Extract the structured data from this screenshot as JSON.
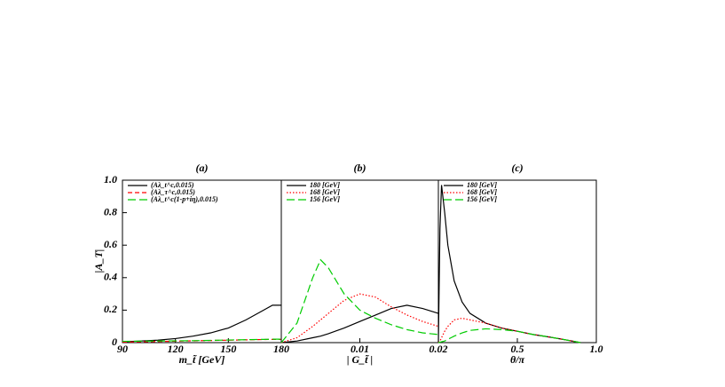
{
  "chart_data": [
    {
      "type": "line",
      "title": "(a)",
      "xlabel": "m_t̃ [GeV]",
      "ylabel": "|A_T|",
      "x": [
        90,
        100,
        110,
        120,
        130,
        140,
        150,
        160,
        170,
        175,
        180
      ],
      "xlim": [
        90,
        180
      ],
      "xticks": [
        90,
        120,
        150,
        180
      ],
      "ylim": [
        0,
        1
      ],
      "yticks": [
        0,
        {
          "value": 0.2,
          "label": "0.2"
        },
        {
          "value": 0.4,
          "label": "0.4"
        },
        {
          "value": 0.6,
          "label": "0.6"
        },
        {
          "value": 0.8,
          "label": "0.8"
        },
        {
          "value": 1,
          "label": "1.0"
        }
      ],
      "legend": "upper left",
      "series": [
        {
          "name": "(Aλ_t^c,0.015)",
          "color": "#000000",
          "dash": "solid",
          "values": [
            0.005,
            0.01,
            0.015,
            0.025,
            0.04,
            0.06,
            0.09,
            0.14,
            0.2,
            0.23,
            0.23
          ]
        },
        {
          "name": "(Aλ_τ^c,0.015)",
          "color": "#ff0000",
          "dash": "dashed",
          "values": [
            0.003,
            0.005,
            0.007,
            0.009,
            0.011,
            0.013,
            0.015,
            0.017,
            0.019,
            0.02,
            0.02
          ]
        },
        {
          "name": "(Aλ_t^c(1-p+iη),0.015)",
          "color": "#00cc00",
          "dash": "longdash",
          "values": [
            0.008,
            0.009,
            0.01,
            0.011,
            0.012,
            0.014,
            0.016,
            0.018,
            0.02,
            0.021,
            0.021
          ]
        }
      ]
    },
    {
      "type": "line",
      "title": "(b)",
      "xlabel": "| G_t̃ |",
      "x": [
        0,
        0.002,
        0.004,
        0.005,
        0.006,
        0.008,
        0.01,
        0.012,
        0.014,
        0.016,
        0.018,
        0.02
      ],
      "xlim": [
        0,
        0.02
      ],
      "xticks": [
        0.01,
        0.02
      ],
      "ylim": [
        0,
        1
      ],
      "legend": "upper left",
      "series": [
        {
          "name": "180 [GeV]",
          "color": "#000000",
          "dash": "solid",
          "values": [
            0,
            0.01,
            0.03,
            0.04,
            0.055,
            0.09,
            0.13,
            0.17,
            0.21,
            0.23,
            0.21,
            0.18
          ]
        },
        {
          "name": "168 [GeV]",
          "color": "#ff0000",
          "dash": "dotted",
          "values": [
            0,
            0.03,
            0.1,
            0.14,
            0.18,
            0.26,
            0.3,
            0.28,
            0.22,
            0.17,
            0.13,
            0.1
          ]
        },
        {
          "name": "156 [GeV]",
          "color": "#00cc00",
          "dash": "longdash",
          "values": [
            0,
            0.12,
            0.4,
            0.51,
            0.46,
            0.3,
            0.2,
            0.15,
            0.11,
            0.08,
            0.06,
            0.05
          ]
        }
      ]
    },
    {
      "type": "line",
      "title": "(c)",
      "xlabel": "θ/π",
      "x": [
        0,
        0.01,
        0.02,
        0.04,
        0.06,
        0.1,
        0.15,
        0.2,
        0.3,
        0.4,
        0.5,
        0.6,
        0.7,
        0.8,
        0.9
      ],
      "xlim": [
        0,
        1
      ],
      "xticks": [
        0.5,
        {
          "value": 1,
          "label": "1.0"
        }
      ],
      "ylim": [
        0,
        1
      ],
      "legend": "upper left",
      "series": [
        {
          "name": "180 [GeV]",
          "color": "#000000",
          "dash": "solid",
          "values": [
            0,
            0.7,
            0.97,
            0.8,
            0.6,
            0.38,
            0.25,
            0.18,
            0.12,
            0.09,
            0.07,
            0.05,
            0.035,
            0.018,
            0
          ]
        },
        {
          "name": "168 [GeV]",
          "color": "#ff0000",
          "dash": "dotted",
          "values": [
            0,
            0.01,
            0.03,
            0.07,
            0.1,
            0.14,
            0.15,
            0.14,
            0.12,
            0.09,
            0.07,
            0.05,
            0.035,
            0.018,
            0
          ]
        },
        {
          "name": "156 [GeV]",
          "color": "#00cc00",
          "dash": "longdash",
          "values": [
            0,
            0.002,
            0.005,
            0.01,
            0.02,
            0.04,
            0.06,
            0.075,
            0.085,
            0.08,
            0.07,
            0.05,
            0.035,
            0.018,
            0
          ]
        }
      ]
    }
  ]
}
